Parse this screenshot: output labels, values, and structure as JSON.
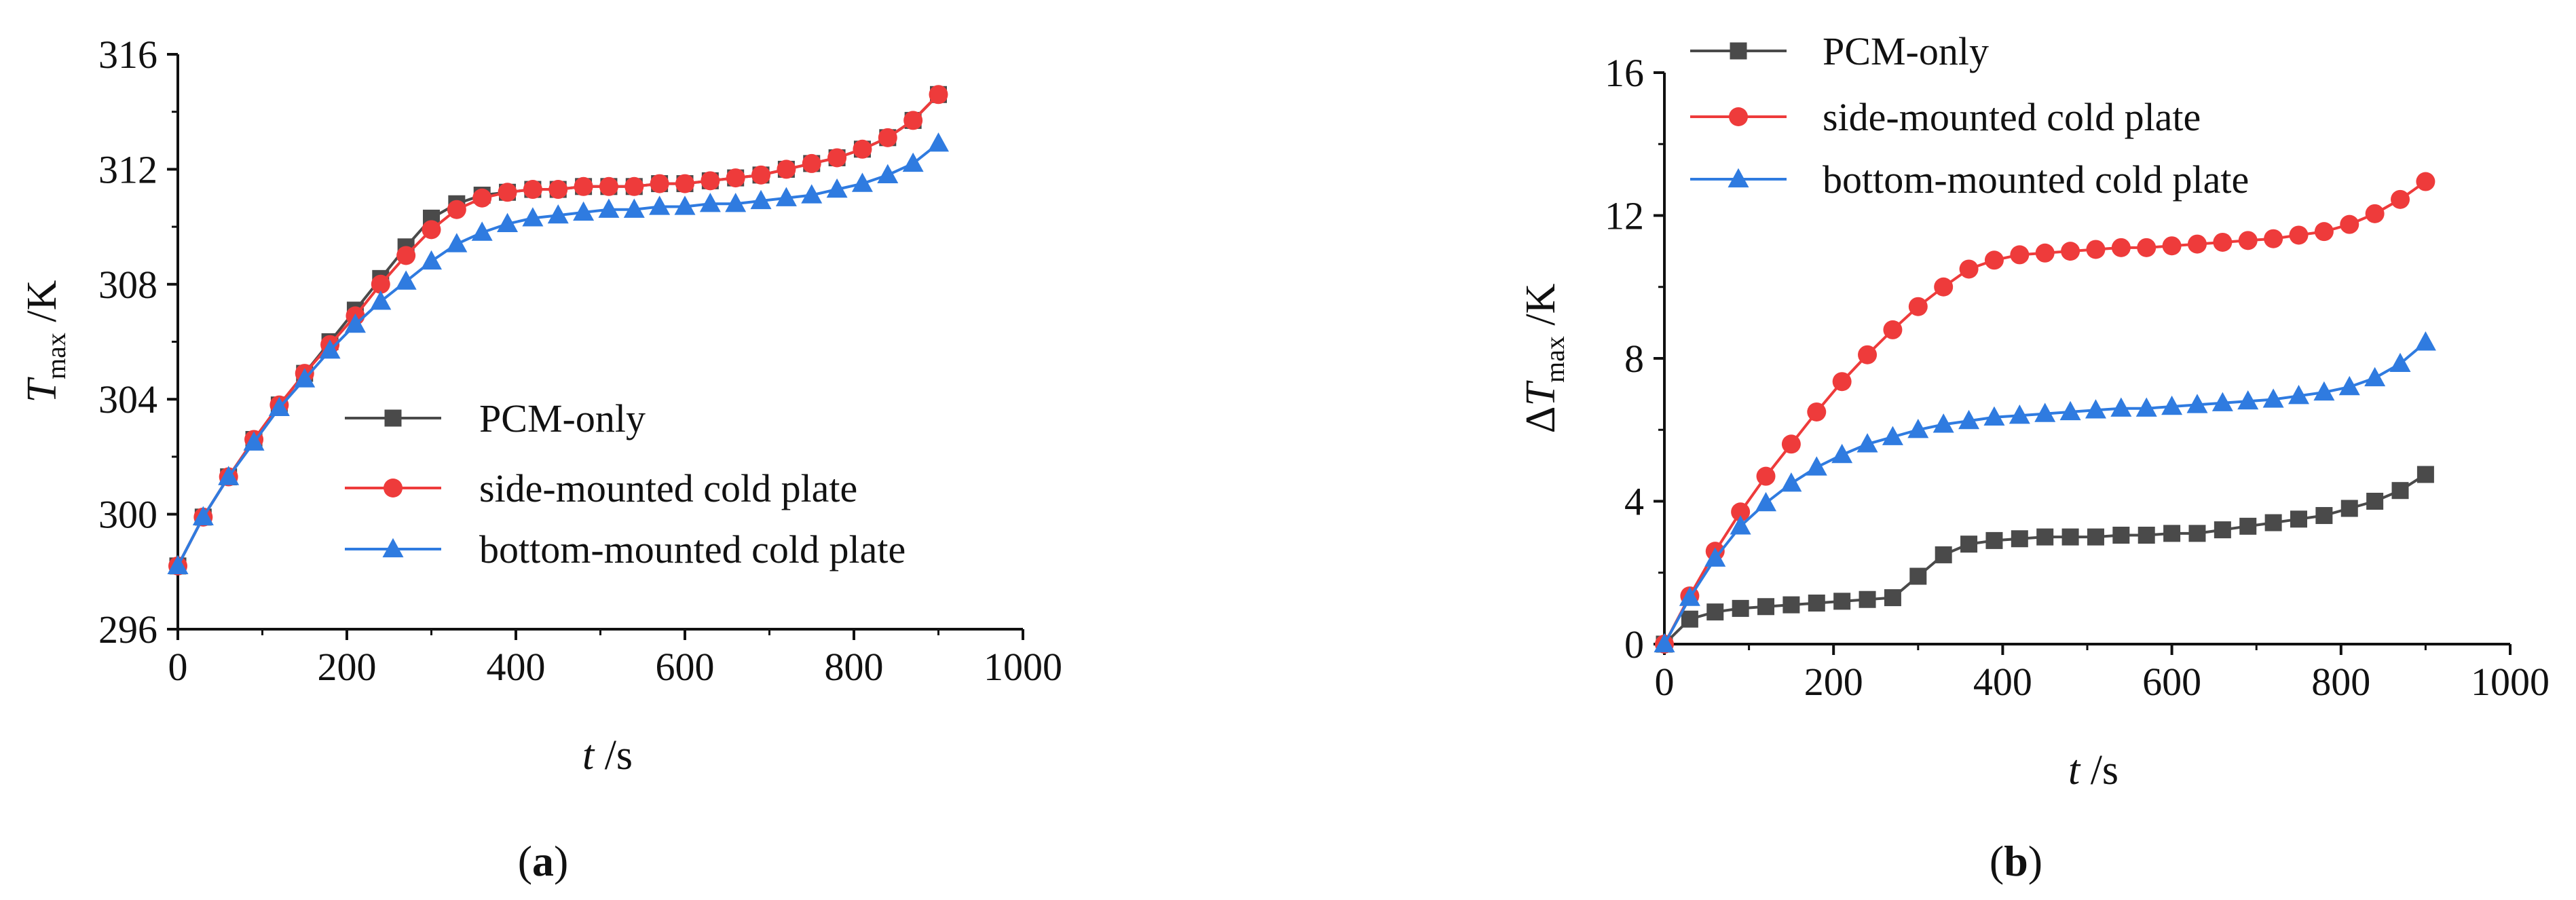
{
  "chart_data": [
    {
      "type": "line",
      "panel_label": "(a)",
      "panel_letter": "a",
      "ylabel": {
        "symbol": "T",
        "subscript": "max",
        "unit": " /K"
      },
      "xlabel": {
        "symbol": "t",
        "unit": " /s"
      },
      "xlim": [
        0,
        1000
      ],
      "ylim": [
        296,
        316
      ],
      "xticks": [
        0,
        200,
        400,
        600,
        800,
        1000
      ],
      "yticks": [
        296,
        300,
        304,
        308,
        312,
        316
      ],
      "legend_position": "center-right",
      "x": [
        0,
        30,
        60,
        90,
        120,
        150,
        180,
        210,
        240,
        270,
        300,
        330,
        360,
        390,
        420,
        450,
        480,
        510,
        540,
        570,
        600,
        630,
        660,
        690,
        720,
        750,
        780,
        810,
        840,
        870,
        900
      ],
      "series": [
        {
          "name": "PCM-only",
          "color": "#4a4a4a",
          "marker": "square",
          "values": [
            298.2,
            299.9,
            301.3,
            302.6,
            303.8,
            304.9,
            306.0,
            307.1,
            308.2,
            309.3,
            310.3,
            310.8,
            311.1,
            311.2,
            311.3,
            311.3,
            311.4,
            311.4,
            311.4,
            311.5,
            311.5,
            311.6,
            311.7,
            311.8,
            312.0,
            312.2,
            312.4,
            312.7,
            313.1,
            313.7,
            314.6
          ]
        },
        {
          "name": "side-mounted cold plate",
          "color": "#ee3b3b",
          "marker": "circle",
          "values": [
            298.2,
            299.9,
            301.3,
            302.6,
            303.8,
            304.9,
            305.9,
            306.9,
            308.0,
            309.0,
            309.9,
            310.6,
            311.0,
            311.2,
            311.3,
            311.3,
            311.4,
            311.4,
            311.4,
            311.5,
            311.5,
            311.6,
            311.7,
            311.8,
            312.0,
            312.2,
            312.4,
            312.7,
            313.1,
            313.7,
            314.6
          ]
        },
        {
          "name": "bottom-mounted cold plate",
          "color": "#2f7be0",
          "marker": "triangle",
          "values": [
            298.2,
            299.9,
            301.3,
            302.5,
            303.7,
            304.7,
            305.7,
            306.6,
            307.4,
            308.1,
            308.8,
            309.4,
            309.8,
            310.1,
            310.3,
            310.4,
            310.5,
            310.6,
            310.6,
            310.7,
            310.7,
            310.8,
            310.8,
            310.9,
            311.0,
            311.1,
            311.3,
            311.5,
            311.8,
            312.2,
            312.9
          ]
        }
      ]
    },
    {
      "type": "line",
      "panel_label": "(b)",
      "panel_letter": "b",
      "ylabel": {
        "symbol": "ΔT",
        "subscript": "max",
        "unit": " /K"
      },
      "xlabel": {
        "symbol": "t",
        "unit": " /s"
      },
      "xlim": [
        0,
        1000
      ],
      "ylim": [
        0,
        16
      ],
      "xticks": [
        0,
        200,
        400,
        600,
        800,
        1000
      ],
      "yticks": [
        0,
        4,
        8,
        12,
        16
      ],
      "legend_position": "top-left",
      "x": [
        0,
        30,
        60,
        90,
        120,
        150,
        180,
        210,
        240,
        270,
        300,
        330,
        360,
        390,
        420,
        450,
        480,
        510,
        540,
        570,
        600,
        630,
        660,
        690,
        720,
        750,
        780,
        810,
        840,
        870,
        900
      ],
      "series": [
        {
          "name": "PCM-only",
          "color": "#4a4a4a",
          "marker": "square",
          "values": [
            0,
            0.7,
            0.9,
            1.0,
            1.05,
            1.1,
            1.15,
            1.2,
            1.25,
            1.3,
            1.9,
            2.5,
            2.8,
            2.9,
            2.95,
            3.0,
            3.0,
            3.0,
            3.05,
            3.05,
            3.1,
            3.1,
            3.2,
            3.3,
            3.4,
            3.5,
            3.6,
            3.8,
            4.0,
            4.3,
            4.75
          ]
        },
        {
          "name": "side-mounted cold plate",
          "color": "#ee3b3b",
          "marker": "circle",
          "values": [
            0,
            1.35,
            2.6,
            3.7,
            4.7,
            5.6,
            6.5,
            7.35,
            8.1,
            8.8,
            9.45,
            10.0,
            10.5,
            10.75,
            10.9,
            10.95,
            11.0,
            11.05,
            11.1,
            11.1,
            11.15,
            11.2,
            11.25,
            11.3,
            11.35,
            11.45,
            11.55,
            11.75,
            12.05,
            12.45,
            12.95
          ]
        },
        {
          "name": "bottom-mounted cold plate",
          "color": "#2f7be0",
          "marker": "triangle",
          "values": [
            0,
            1.3,
            2.4,
            3.3,
            3.95,
            4.5,
            4.95,
            5.3,
            5.6,
            5.8,
            6.0,
            6.15,
            6.25,
            6.35,
            6.4,
            6.45,
            6.5,
            6.55,
            6.6,
            6.6,
            6.65,
            6.7,
            6.75,
            6.8,
            6.85,
            6.95,
            7.05,
            7.2,
            7.45,
            7.85,
            8.45
          ]
        }
      ]
    }
  ]
}
